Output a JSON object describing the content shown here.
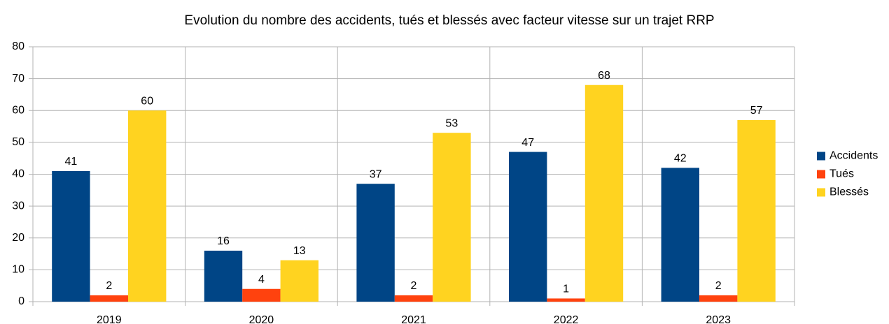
{
  "chart_data": {
    "type": "bar",
    "title": "Evolution du nombre des accidents, tués et blessés avec facteur vitesse sur un trajet RRP",
    "categories": [
      "2019",
      "2020",
      "2021",
      "2022",
      "2023"
    ],
    "series": [
      {
        "name": "Accidents",
        "color": "#004586",
        "values": [
          41,
          16,
          37,
          47,
          42
        ]
      },
      {
        "name": "Tués",
        "color": "#ff420e",
        "values": [
          2,
          4,
          2,
          1,
          2
        ]
      },
      {
        "name": "Blessés",
        "color": "#ffd320",
        "values": [
          60,
          13,
          53,
          68,
          57
        ]
      }
    ],
    "ylim": [
      0,
      80
    ],
    "yticks": [
      0,
      10,
      20,
      30,
      40,
      50,
      60,
      70,
      80
    ],
    "grid": true,
    "legend": "right"
  }
}
